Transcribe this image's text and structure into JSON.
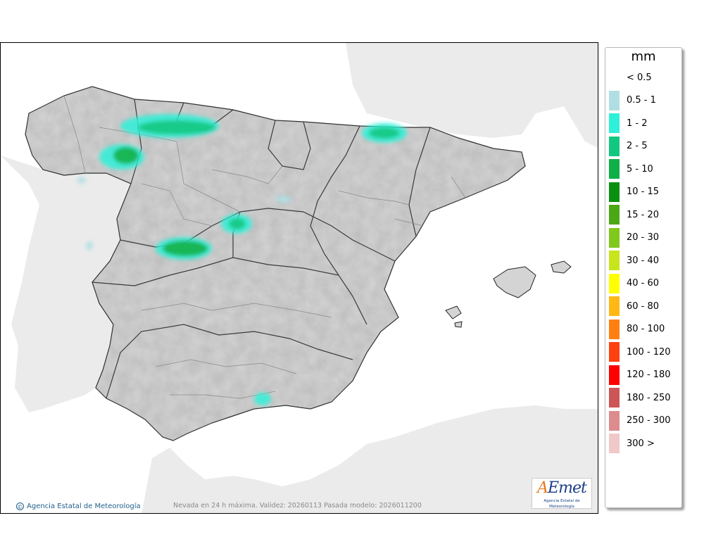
{
  "map": {
    "credit": "Agencia Estatal de Meteorología",
    "caption": "Nevada en 24 h máxima. Validez: 20260113 Pasada modelo: 2026011200",
    "logo_text": "AEmet",
    "logo_subtitle": "Agencia Estatal de Meteorología",
    "colors": {
      "sea": "#ffffff",
      "land_other": "#ebebeb",
      "land_spain": "#d4d4d4",
      "border": "#333333"
    }
  },
  "legend": {
    "unit": "mm",
    "items": [
      {
        "label": "< 0.5",
        "color": "#ffffff"
      },
      {
        "label": "0.5 - 1",
        "color": "#b0dfe3"
      },
      {
        "label": "1 - 2",
        "color": "#2ff0d8"
      },
      {
        "label": "2 - 5",
        "color": "#12c880"
      },
      {
        "label": "5 - 10",
        "color": "#0fb048"
      },
      {
        "label": "10 - 15",
        "color": "#0a9010"
      },
      {
        "label": "15 - 20",
        "color": "#4aa814"
      },
      {
        "label": "20 - 30",
        "color": "#80c81c"
      },
      {
        "label": "30 - 40",
        "color": "#c8e41c"
      },
      {
        "label": "40 - 60",
        "color": "#ffff00"
      },
      {
        "label": "60 - 80",
        "color": "#ffb814"
      },
      {
        "label": "80 - 100",
        "color": "#ff8010"
      },
      {
        "label": "100 - 120",
        "color": "#ff4010"
      },
      {
        "label": "120 - 180",
        "color": "#ff0000"
      },
      {
        "label": "180 - 250",
        "color": "#cd5555"
      },
      {
        "label": "250 - 300",
        "color": "#dc8c8c"
      },
      {
        "label": "300 >",
        "color": "#f0c8c8"
      }
    ]
  }
}
